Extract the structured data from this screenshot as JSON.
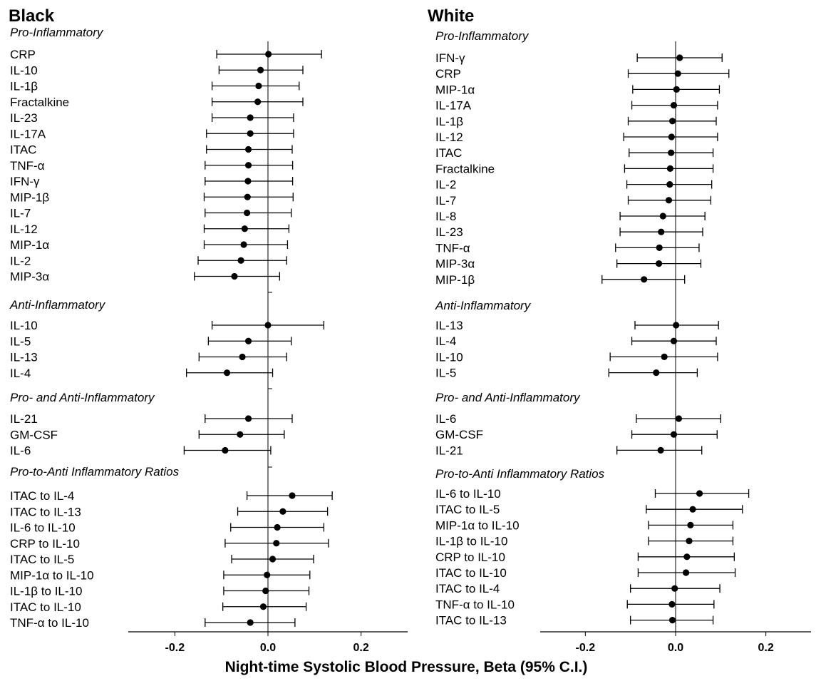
{
  "xlabel": "Night-time Systolic Blood Pressure, Beta (95% C.I.)",
  "chart_data": [
    {
      "type": "scatter",
      "title": "Black",
      "xlim": [
        -0.3,
        0.3
      ],
      "xticks": [
        -0.2,
        0.0,
        0.2
      ],
      "xtick_labels": [
        "-0.2",
        "0.0",
        "0.2"
      ],
      "marker_color": "#000000",
      "groups": [
        {
          "label": "Pro-Inflammatory",
          "rows": [
            {
              "label": "CRP",
              "est": 0.001,
              "lo": -0.11,
              "hi": 0.115
            },
            {
              "label": "IL-10",
              "est": -0.016,
              "lo": -0.105,
              "hi": 0.075
            },
            {
              "label": "IL-1β",
              "est": -0.02,
              "lo": -0.12,
              "hi": 0.067
            },
            {
              "label": "Fractalkine",
              "est": -0.022,
              "lo": -0.12,
              "hi": 0.075
            },
            {
              "label": "IL-23",
              "est": -0.038,
              "lo": -0.12,
              "hi": 0.055
            },
            {
              "label": "IL-17A",
              "est": -0.038,
              "lo": -0.132,
              "hi": 0.055
            },
            {
              "label": "ITAC",
              "est": -0.042,
              "lo": -0.132,
              "hi": 0.052
            },
            {
              "label": "TNF-α",
              "est": -0.042,
              "lo": -0.135,
              "hi": 0.053
            },
            {
              "label": "IFN-γ",
              "est": -0.043,
              "lo": -0.135,
              "hi": 0.053
            },
            {
              "label": "MIP-1β",
              "est": -0.044,
              "lo": -0.137,
              "hi": 0.054
            },
            {
              "label": "IL-7",
              "est": -0.045,
              "lo": -0.135,
              "hi": 0.05
            },
            {
              "label": "IL-12",
              "est": -0.05,
              "lo": -0.137,
              "hi": 0.045
            },
            {
              "label": "MIP-1α",
              "est": -0.052,
              "lo": -0.137,
              "hi": 0.042
            },
            {
              "label": "IL-2",
              "est": -0.058,
              "lo": -0.15,
              "hi": 0.04
            },
            {
              "label": "MIP-3α",
              "est": -0.072,
              "lo": -0.158,
              "hi": 0.025
            }
          ]
        },
        {
          "label": "Anti-Inflammatory",
          "rows": [
            {
              "label": "IL-10",
              "est": 0.0,
              "lo": -0.12,
              "hi": 0.12
            },
            {
              "label": "IL-5",
              "est": -0.042,
              "lo": -0.128,
              "hi": 0.05
            },
            {
              "label": "IL-13",
              "est": -0.055,
              "lo": -0.148,
              "hi": 0.04
            },
            {
              "label": "IL-4",
              "est": -0.088,
              "lo": -0.175,
              "hi": 0.01
            }
          ]
        },
        {
          "label": "Pro- and Anti-Inflammatory",
          "rows": [
            {
              "label": "IL-21",
              "est": -0.042,
              "lo": -0.135,
              "hi": 0.052
            },
            {
              "label": "GM-CSF",
              "est": -0.06,
              "lo": -0.148,
              "hi": 0.035
            },
            {
              "label": "IL-6",
              "est": -0.092,
              "lo": -0.18,
              "hi": 0.006
            }
          ]
        },
        {
          "label": "Pro-to-Anti Inflammatory Ratios",
          "rows": [
            {
              "label": "ITAC to IL-4",
              "est": 0.052,
              "lo": -0.045,
              "hi": 0.138
            },
            {
              "label": "ITAC to IL-13",
              "est": 0.032,
              "lo": -0.065,
              "hi": 0.128
            },
            {
              "label": "IL-6 to IL-10",
              "est": 0.02,
              "lo": -0.08,
              "hi": 0.12
            },
            {
              "label": "CRP to IL-10",
              "est": 0.018,
              "lo": -0.092,
              "hi": 0.13
            },
            {
              "label": "ITAC to IL-5",
              "est": 0.01,
              "lo": -0.078,
              "hi": 0.098
            },
            {
              "label": "MIP-1α to IL-10",
              "est": -0.002,
              "lo": -0.095,
              "hi": 0.09
            },
            {
              "label": "IL-1β to IL-10",
              "est": -0.005,
              "lo": -0.095,
              "hi": 0.088
            },
            {
              "label": "ITAC to IL-10",
              "est": -0.01,
              "lo": -0.097,
              "hi": 0.082
            },
            {
              "label": "TNF-α to IL-10",
              "est": -0.038,
              "lo": -0.135,
              "hi": 0.058
            }
          ]
        }
      ]
    },
    {
      "type": "scatter",
      "title": "White",
      "xlim": [
        -0.3,
        0.3
      ],
      "xticks": [
        -0.2,
        0.0,
        0.2
      ],
      "xtick_labels": [
        "-0.2",
        "0.0",
        "0.2"
      ],
      "marker_color": "#000000",
      "groups": [
        {
          "label": "Pro-Inflammatory",
          "rows": [
            {
              "label": "IFN-γ",
              "est": 0.009,
              "lo": -0.085,
              "hi": 0.103
            },
            {
              "label": "CRP",
              "est": 0.005,
              "lo": -0.105,
              "hi": 0.118
            },
            {
              "label": "MIP-1α",
              "est": 0.002,
              "lo": -0.095,
              "hi": 0.097
            },
            {
              "label": "IL-17A",
              "est": -0.004,
              "lo": -0.097,
              "hi": 0.093
            },
            {
              "label": "IL-1β",
              "est": -0.007,
              "lo": -0.105,
              "hi": 0.09
            },
            {
              "label": "IL-12",
              "est": -0.009,
              "lo": -0.115,
              "hi": 0.093
            },
            {
              "label": "ITAC",
              "est": -0.01,
              "lo": -0.103,
              "hi": 0.083
            },
            {
              "label": "Fractalkine",
              "est": -0.012,
              "lo": -0.113,
              "hi": 0.083
            },
            {
              "label": "IL-2",
              "est": -0.013,
              "lo": -0.108,
              "hi": 0.08
            },
            {
              "label": "IL-7",
              "est": -0.015,
              "lo": -0.105,
              "hi": 0.078
            },
            {
              "label": "IL-8",
              "est": -0.028,
              "lo": -0.123,
              "hi": 0.065
            },
            {
              "label": "IL-23",
              "est": -0.032,
              "lo": -0.123,
              "hi": 0.06
            },
            {
              "label": "TNF-α",
              "est": -0.036,
              "lo": -0.133,
              "hi": 0.052
            },
            {
              "label": "MIP-3α",
              "est": -0.037,
              "lo": -0.13,
              "hi": 0.056
            },
            {
              "label": "MIP-1β",
              "est": -0.07,
              "lo": -0.163,
              "hi": 0.02
            }
          ]
        },
        {
          "label": "Anti-Inflammatory",
          "rows": [
            {
              "label": "IL-13",
              "est": 0.001,
              "lo": -0.09,
              "hi": 0.095
            },
            {
              "label": "IL-4",
              "est": -0.004,
              "lo": -0.097,
              "hi": 0.09
            },
            {
              "label": "IL-10",
              "est": -0.025,
              "lo": -0.145,
              "hi": 0.093
            },
            {
              "label": "IL-5",
              "est": -0.043,
              "lo": -0.148,
              "hi": 0.048
            }
          ]
        },
        {
          "label": "Pro- and Anti-Inflammatory",
          "rows": [
            {
              "label": "IL-6",
              "est": 0.007,
              "lo": -0.087,
              "hi": 0.1
            },
            {
              "label": "GM-CSF",
              "est": -0.004,
              "lo": -0.097,
              "hi": 0.092
            },
            {
              "label": "IL-21",
              "est": -0.033,
              "lo": -0.13,
              "hi": 0.058
            }
          ]
        },
        {
          "label": "Pro-to-Anti Inflammatory Ratios",
          "rows": [
            {
              "label": "IL-6 to IL-10",
              "est": 0.053,
              "lo": -0.045,
              "hi": 0.162
            },
            {
              "label": "ITAC to IL-5",
              "est": 0.038,
              "lo": -0.065,
              "hi": 0.148
            },
            {
              "label": "MIP-1α to IL-10",
              "est": 0.033,
              "lo": -0.06,
              "hi": 0.127
            },
            {
              "label": "IL-1β to IL-10",
              "est": 0.03,
              "lo": -0.06,
              "hi": 0.127
            },
            {
              "label": "CRP to IL-10",
              "est": 0.025,
              "lo": -0.083,
              "hi": 0.13
            },
            {
              "label": "ITAC to IL-10",
              "est": 0.023,
              "lo": -0.083,
              "hi": 0.132
            },
            {
              "label": "ITAC to IL-4",
              "est": -0.002,
              "lo": -0.1,
              "hi": 0.098
            },
            {
              "label": "TNF-α to IL-10",
              "est": -0.008,
              "lo": -0.107,
              "hi": 0.085
            },
            {
              "label": "ITAC to IL-13",
              "est": -0.007,
              "lo": -0.1,
              "hi": 0.083
            }
          ]
        }
      ]
    }
  ]
}
